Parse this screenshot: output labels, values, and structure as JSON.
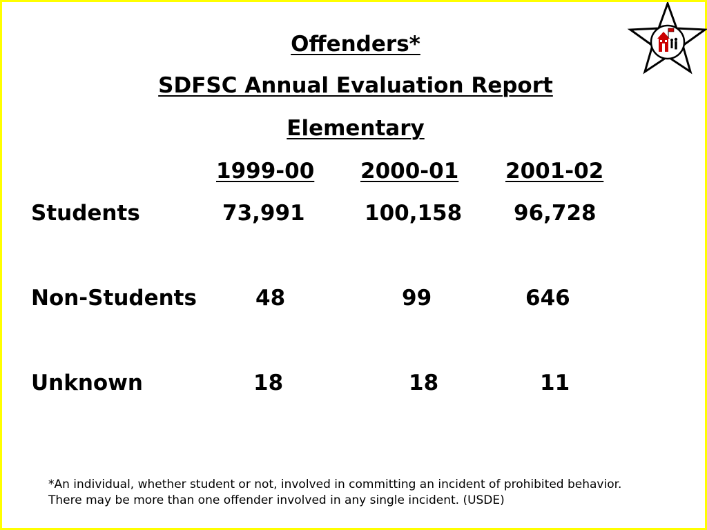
{
  "header": {
    "title": "Offenders*",
    "subtitle": "SDFSC Annual Evaluation Report",
    "level": "Elementary"
  },
  "table": {
    "years": [
      "1999-00",
      "2000-01",
      "2001-02"
    ],
    "rows": [
      {
        "label": "Students",
        "values": [
          "73,991",
          "100,158",
          "96,728"
        ]
      },
      {
        "label": "Non-Students",
        "values": [
          "48",
          "99",
          "646"
        ]
      },
      {
        "label": "Unknown",
        "values": [
          "18",
          "18",
          "11"
        ]
      }
    ]
  },
  "footnote": "*An individual, whether student or not, involved in committing an incident of prohibited behavior.  There may be more than one offender involved in any single incident. (USDE)",
  "logo": {
    "icon": "star-school-logo-icon"
  },
  "colors": {
    "border": "#ffff00",
    "logo_accent": "#cc0000"
  }
}
